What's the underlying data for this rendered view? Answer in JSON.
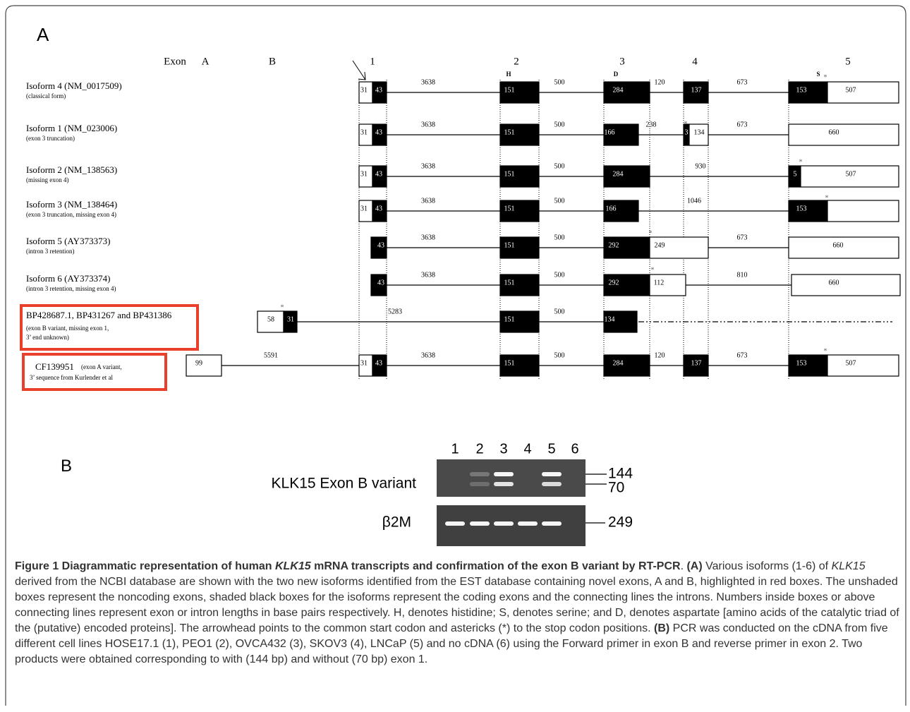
{
  "panel_a": {
    "label": "A",
    "exon_header": [
      "Exon",
      "A",
      "B",
      "1",
      "2",
      "3",
      "4",
      "5"
    ],
    "residues": [
      "H",
      "D",
      "S"
    ],
    "stop_marker": "*",
    "isoforms": [
      {
        "name": "Isoform 4 (NM_0017509)",
        "note": [
          "(classical form)"
        ],
        "boxes": [
          "31",
          "43",
          "151",
          "284",
          "137",
          "153",
          "507"
        ],
        "introns": [
          "3638",
          "500",
          "120",
          "673"
        ]
      },
      {
        "name": "Isoform 1 (NM_023006)",
        "note": [
          "(exon 3 truncation)"
        ],
        "boxes": [
          "31",
          "43",
          "151",
          "166",
          "3",
          "134",
          "660"
        ],
        "introns": [
          "3638",
          "500",
          "238",
          "673"
        ]
      },
      {
        "name": "Isoform 2 (NM_138563)",
        "note": [
          "(missing exon 4)"
        ],
        "boxes": [
          "31",
          "43",
          "151",
          "284",
          "5",
          "507"
        ],
        "introns": [
          "3638",
          "500",
          "930"
        ]
      },
      {
        "name": "Isoform 3 (NM_138464)",
        "note": [
          "(exon 3 truncation, missing exon 4)"
        ],
        "boxes": [
          "31",
          "43",
          "151",
          "166",
          "153"
        ],
        "introns": [
          "3638",
          "500",
          "1046"
        ]
      },
      {
        "name": "Isoform 5 (AY373373)",
        "note": [
          "(intron 3 retention)"
        ],
        "boxes": [
          "43",
          "151",
          "292",
          "249",
          "660"
        ],
        "introns": [
          "3638",
          "500",
          "673"
        ]
      },
      {
        "name": "Isoform 6 (AY373374)",
        "note": [
          "(intron 3 retention, missing exon 4)"
        ],
        "boxes": [
          "43",
          "151",
          "292",
          "112",
          "660"
        ],
        "introns": [
          "3638",
          "500",
          "810"
        ]
      },
      {
        "name": "BP428687.1, BP431267 and BP431386",
        "note": [
          "(exon B variant, missing exon 1,",
          "3’ end unknown)"
        ],
        "boxes": [
          "58",
          "31",
          "151",
          "134"
        ],
        "introns": [
          "5283",
          "500"
        ]
      },
      {
        "name": "CF139951",
        "note": [
          "(exon A variant,",
          "3’ sequence from  Kurlender et al"
        ],
        "boxes": [
          "99",
          "31",
          "43",
          "151",
          "284",
          "137",
          "153",
          "507"
        ],
        "introns": [
          "5591",
          "3638",
          "500",
          "120",
          "673"
        ]
      }
    ]
  },
  "panel_b": {
    "label": "B",
    "lanes": [
      "1",
      "2",
      "3",
      "4",
      "5",
      "6"
    ],
    "gels": [
      {
        "name": "KLK15 Exon B variant",
        "sizes": [
          "144",
          "70"
        ]
      },
      {
        "name": "β2M",
        "sizes": [
          "249"
        ]
      }
    ]
  },
  "caption": {
    "segments": [
      "Figure 1 Diagrammatic representation of human ",
      "KLK15",
      " mRNA transcripts and confirmation of the exon B variant by RT-PCR",
      ". ",
      "(A)",
      " Various isoforms (1-6) of ",
      "KLK15",
      " derived from the NCBI database are shown with the two new isoforms identified from the EST database containing novel exons, A and B, highlighted in red boxes. The unshaded boxes represent the noncoding exons, shaded black boxes for the isoforms represent the coding exons and the connecting lines the introns. Numbers inside boxes or above connecting lines represent exon or intron lengths in base pairs respectively. H, denotes histidine; S, denotes serine; and D, denotes aspartate [amino acids of the catalytic triad of the (putative) encoded proteins]. The arrowhead points to the common start codon and astericks (*) to the stop codon positions. ",
      "(B)",
      " PCR was conducted on the cDNA from five different cell lines HOSE17.1 (1), PEO1 (2), OVCA432 (3), SKOV3 (4), LNCaP (5) and no cDNA (6) using the Forward primer in exon B and reverse primer in exon 2. Two products were obtained corresponding to with (144 bp) and without (70 bp) exon 1."
    ]
  }
}
